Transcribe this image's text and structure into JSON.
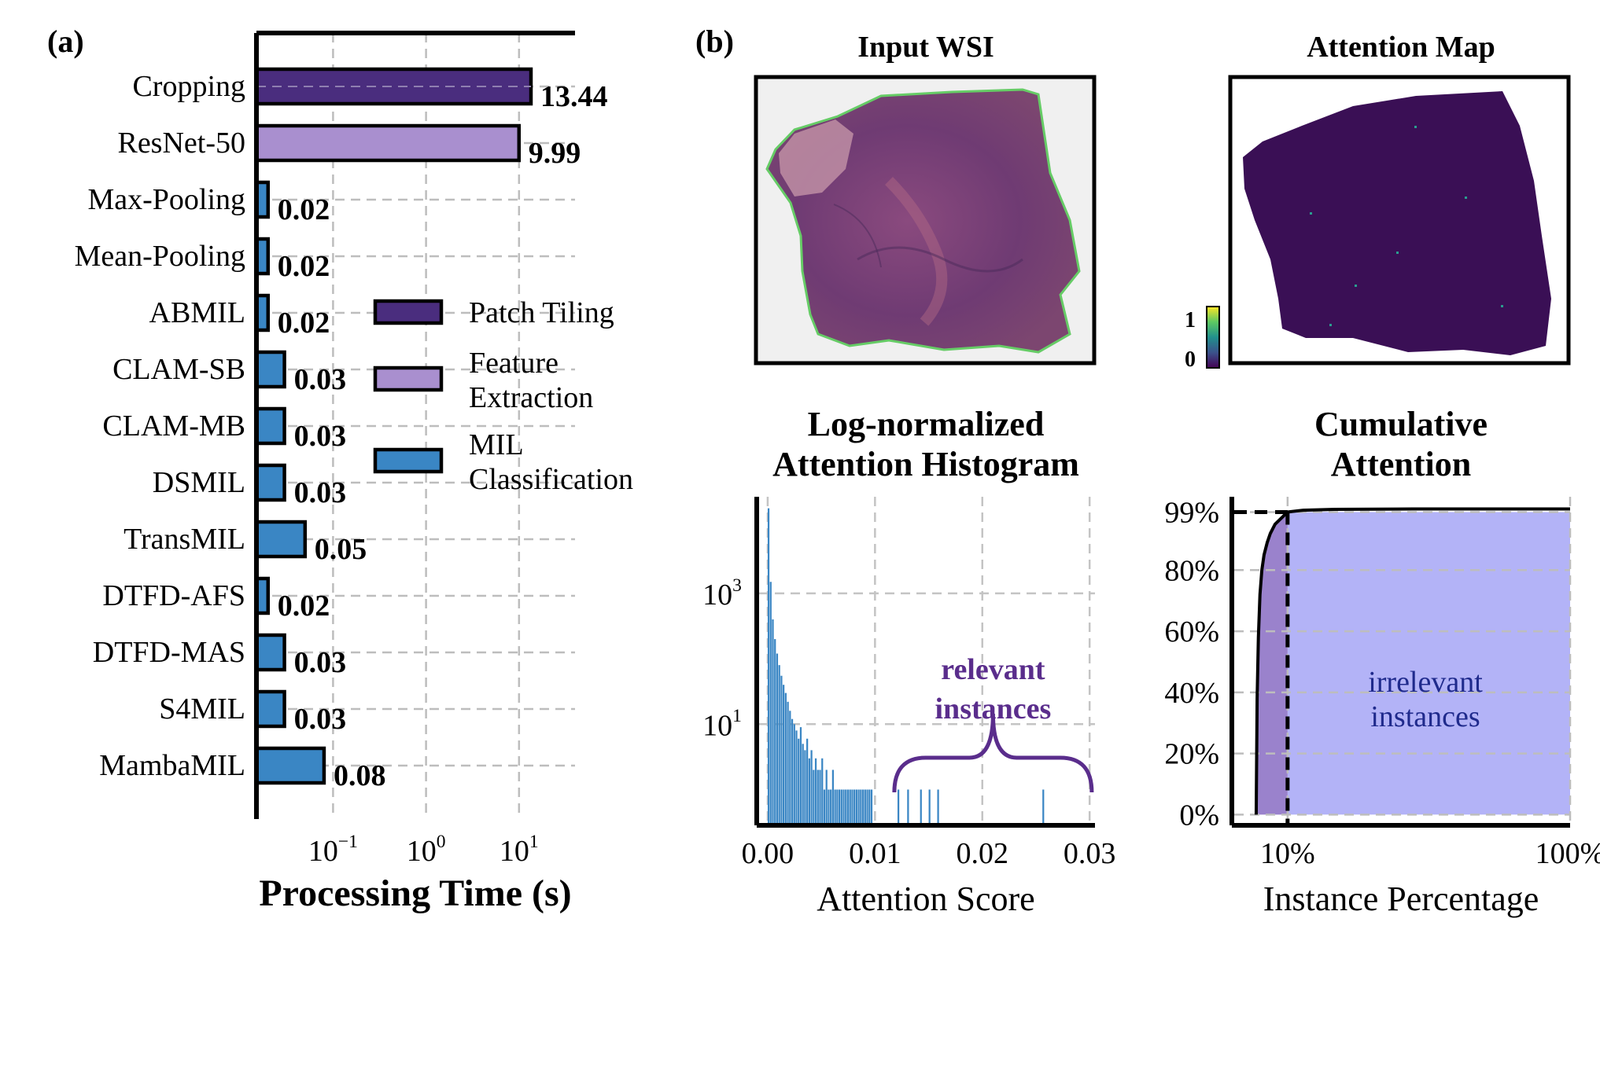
{
  "panels": {
    "a_label": "(a)",
    "b_label": "(b)"
  },
  "colors": {
    "patch_tiling": "#4a2d7e",
    "feature_extraction": "#a98fcf",
    "mil_classification": "#3a86c4",
    "wsi_tissue": "#7e4a7a",
    "attention_bg": "#3a0f55",
    "irrelevant_fill": "#b3b3f7",
    "relevant_fill": "#9a82cc",
    "annotation_purple": "#5a2d8c",
    "annotation_navy": "#1f2a8c"
  },
  "chart_data": [
    {
      "id": "a",
      "type": "bar",
      "orientation": "horizontal",
      "xscale": "log",
      "xlim": [
        0.015,
        40
      ],
      "xlabel": "Processing Time (s)",
      "xticks": [
        {
          "base": "10",
          "exp": "−1"
        },
        {
          "base": "10",
          "exp": "0"
        },
        {
          "base": "10",
          "exp": "1"
        }
      ],
      "categories": [
        "Cropping",
        "ResNet-50",
        "Max-Pooling",
        "Mean-Pooling",
        "ABMIL",
        "CLAM-SB",
        "CLAM-MB",
        "DSMIL",
        "TransMIL",
        "DTFD-AFS",
        "DTFD-MAS",
        "S4MIL",
        "MambaMIL"
      ],
      "values": [
        13.44,
        9.99,
        0.02,
        0.02,
        0.02,
        0.03,
        0.03,
        0.03,
        0.05,
        0.02,
        0.03,
        0.03,
        0.08
      ],
      "value_labels": [
        "13.44",
        "9.99",
        "0.02",
        "0.02",
        "0.02",
        "0.03",
        "0.03",
        "0.03",
        "0.05",
        "0.02",
        "0.03",
        "0.03",
        "0.08"
      ],
      "groups": [
        "patch_tiling",
        "feature_extraction",
        "mil",
        "mil",
        "mil",
        "mil",
        "mil",
        "mil",
        "mil",
        "mil",
        "mil",
        "mil",
        "mil"
      ],
      "legend": {
        "position": "center-right",
        "entries": [
          {
            "lines": [
              "Patch Tiling"
            ],
            "color_key": "patch_tiling"
          },
          {
            "lines": [
              "Feature",
              "Extraction"
            ],
            "color_key": "feature_extraction"
          },
          {
            "lines": [
              "MIL",
              "Classification"
            ],
            "color_key": "mil_classification"
          }
        ]
      },
      "grid": true
    },
    {
      "id": "b-wsi",
      "type": "image",
      "title": "Input WSI"
    },
    {
      "id": "b-attention",
      "type": "heatmap",
      "title": "Attention Map",
      "colorbar": {
        "max_label": "1",
        "min_label": "0"
      }
    },
    {
      "id": "b-hist",
      "type": "bar",
      "title": [
        "Log-normalized",
        "Attention Histogram"
      ],
      "xlabel": "Attention Score",
      "xlim": [
        -0.0008,
        0.0305
      ],
      "xticks": [
        "0.00",
        "0.01",
        "0.02",
        "0.03"
      ],
      "xtick_values": [
        0,
        0.01,
        0.02,
        0.03
      ],
      "yscale": "log",
      "ylim": [
        0.3,
        30000
      ],
      "yticks": [
        {
          "base": "10",
          "exp": "3",
          "value": 1000
        },
        {
          "base": "10",
          "exp": "1",
          "value": 10
        }
      ],
      "bin_width": 0.0002,
      "counts": [
        20000,
        1500,
        400,
        200,
        120,
        80,
        55,
        40,
        30,
        22,
        16,
        12,
        10,
        8,
        6,
        9,
        5,
        4,
        6,
        3,
        4,
        2,
        3,
        2,
        2,
        3,
        1,
        2,
        1,
        1,
        2,
        1,
        1,
        1,
        1,
        1,
        1,
        1,
        1,
        1,
        1,
        1,
        1,
        1,
        1,
        1,
        1,
        1,
        1
      ],
      "sparse_bins": [
        [
          0.0121,
          1
        ],
        [
          0.013,
          1
        ],
        [
          0.0142,
          1
        ],
        [
          0.015,
          1
        ],
        [
          0.0158,
          1
        ],
        [
          0.0256,
          1
        ]
      ],
      "annotation": {
        "lines": [
          "relevant",
          "instances"
        ],
        "span": [
          0.0118,
          0.0302
        ]
      },
      "grid": true
    },
    {
      "id": "b-cum",
      "type": "line",
      "title": [
        "Cumulative",
        "Attention"
      ],
      "xlabel": "Instance Percentage",
      "xticks": [
        "10%",
        "100%"
      ],
      "xtick_values": [
        10,
        100
      ],
      "xlim": [
        -7,
        100
      ],
      "yticks": [
        "0%",
        "20%",
        "40%",
        "60%",
        "80%",
        "99%"
      ],
      "ytick_values": [
        0,
        20,
        40,
        60,
        80,
        99
      ],
      "ylim": [
        -3,
        104
      ],
      "x": [
        0,
        0.3,
        0.7,
        1.2,
        1.8,
        2.5,
        3.5,
        4.5,
        6,
        8,
        10,
        15,
        25,
        50,
        100
      ],
      "y": [
        0,
        38,
        58,
        72,
        80,
        85,
        89,
        92,
        95,
        97,
        99,
        99.6,
        99.9,
        100,
        100
      ],
      "threshold": {
        "x": 10,
        "y": 99
      },
      "annotation": {
        "lines": [
          "irrelevant",
          "instances"
        ]
      },
      "grid": true
    }
  ]
}
